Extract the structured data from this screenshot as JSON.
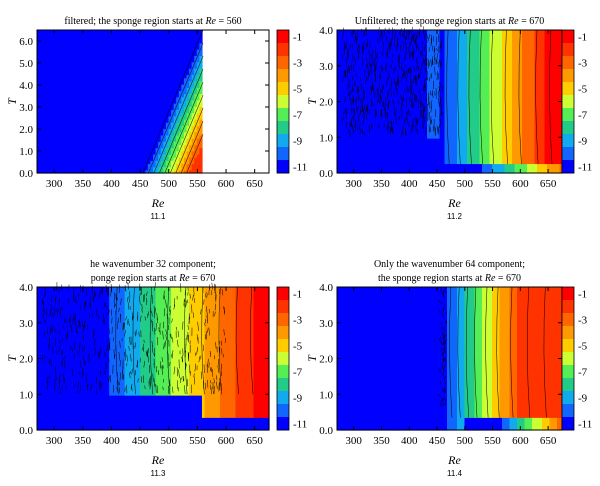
{
  "colorscale": {
    "levels": [
      -1,
      -2,
      -3,
      -4,
      -5,
      -6,
      -7,
      -8,
      -9,
      -10,
      -11
    ],
    "tick_labels": [
      "-1",
      "-3",
      "-5",
      "-7",
      "-9",
      "-11"
    ],
    "tick_values": [
      -1,
      -3,
      -5,
      -7,
      -9,
      -11
    ],
    "colors": [
      "#ff0000",
      "#ff3300",
      "#ff6600",
      "#ff9900",
      "#ffcc00",
      "#ccff33",
      "#55ee55",
      "#22cc88",
      "#11aaee",
      "#1166ff",
      "#0000ff"
    ]
  },
  "chart_data": [
    {
      "type": "heatmap",
      "title_lines": [
        "filtered; the sponge region starts at Re = 560"
      ],
      "caption": "11.1",
      "xlabel": "Re",
      "ylabel": "T",
      "xlim": [
        270,
        675
      ],
      "ylim": [
        0,
        6.5
      ],
      "xticks": [
        300,
        350,
        400,
        450,
        500,
        550,
        600,
        650
      ],
      "yticks": [
        0.0,
        1.0,
        2.0,
        3.0,
        4.0,
        5.0,
        6.0
      ],
      "ytick_labels": [
        "0.0",
        "1.0",
        "2.0",
        "3.0",
        "4.0",
        "5.0",
        "6.0"
      ],
      "sponge_start": 560,
      "variant": "front"
    },
    {
      "type": "heatmap",
      "title_lines": [
        "Unfiltered; the sponge region starts at Re = 670"
      ],
      "caption": "11.2",
      "xlabel": "Re",
      "ylabel": "T",
      "xlim": [
        270,
        675
      ],
      "ylim": [
        0,
        4.0
      ],
      "xticks": [
        300,
        350,
        400,
        450,
        500,
        550,
        600,
        650
      ],
      "yticks": [
        0.0,
        1.0,
        2.0,
        3.0,
        4.0
      ],
      "ytick_labels": [
        "0.0",
        "1.0",
        "2.0",
        "3.0",
        "4.0"
      ],
      "sponge_start": 670,
      "variant": "unfiltered"
    },
    {
      "type": "heatmap",
      "title_lines": [
        "he wavenumber 32 component;",
        "ponge region starts at Re = 670"
      ],
      "caption": "11.3",
      "xlabel": "Re",
      "ylabel": "T",
      "xlim": [
        270,
        675
      ],
      "ylim": [
        0,
        4.0
      ],
      "xticks": [
        300,
        350,
        400,
        450,
        500,
        550,
        600,
        650
      ],
      "yticks": [
        0.0,
        1.0,
        2.0,
        3.0,
        4.0
      ],
      "ytick_labels": [
        "0.0",
        "1.0",
        "2.0",
        "3.0",
        "4.0"
      ],
      "sponge_start": 670,
      "variant": "k32"
    },
    {
      "type": "heatmap",
      "title_lines": [
        "Only the wavenumber 64 component;",
        "the sponge region starts at Re = 670"
      ],
      "caption": "11.4",
      "xlabel": "Re",
      "ylabel": "T",
      "xlim": [
        270,
        675
      ],
      "ylim": [
        0,
        4.0
      ],
      "xticks": [
        300,
        350,
        400,
        450,
        500,
        550,
        600,
        650
      ],
      "yticks": [
        0.0,
        1.0,
        2.0,
        3.0,
        4.0
      ],
      "ytick_labels": [
        "0.0",
        "1.0",
        "2.0",
        "3.0",
        "4.0"
      ],
      "sponge_start": 670,
      "variant": "k64"
    }
  ]
}
